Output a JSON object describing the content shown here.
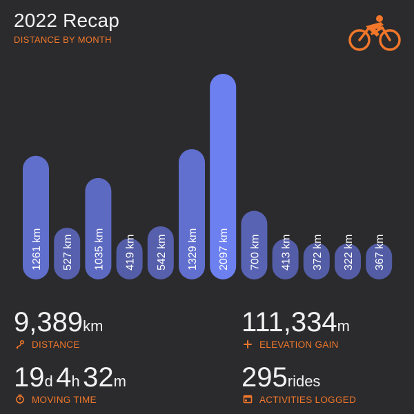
{
  "header": {
    "title": "2022 Recap",
    "subtitle": "DISTANCE BY MONTH"
  },
  "logo": {
    "icon": "cyclist-icon",
    "color": "#f2772a"
  },
  "chart_data": {
    "type": "bar",
    "orientation": "vertical",
    "unit": "km",
    "categories": [
      "",
      "",
      "",
      "",
      "",
      "",
      "",
      "",
      "",
      "",
      "",
      ""
    ],
    "values": [
      1261,
      527,
      1035,
      419,
      542,
      1329,
      2097,
      700,
      413,
      372,
      322,
      367
    ],
    "labels": [
      "1261 km",
      "527 km",
      "1035 km",
      "419 km",
      "542 km",
      "1329 km",
      "2097 km",
      "700 km",
      "413 km",
      "372 km",
      "322 km",
      "367 km"
    ],
    "grid": false,
    "legend": "none",
    "colors": {
      "low": "#4e5596",
      "high": "#6c80f0"
    }
  },
  "stats": {
    "distance": {
      "value": "9,389",
      "unit": "km",
      "label": "DISTANCE",
      "icon": "route-pin-icon"
    },
    "elevation": {
      "value": "111,334",
      "unit": "m",
      "label": "ELEVATION GAIN",
      "icon": "plus-icon"
    },
    "moving_time": {
      "days": "19",
      "days_unit": "d",
      "hours": "4",
      "hours_unit": "h",
      "minutes": "32",
      "minutes_unit": "m",
      "label": "MOVING TIME",
      "icon": "stopwatch-icon"
    },
    "activities": {
      "value": "295",
      "unit": "rides",
      "label": "ACTIVITIES LOGGED",
      "icon": "calendar-icon"
    }
  },
  "colors": {
    "background": "#2b2b2d",
    "accent": "#f2772a",
    "text": "#f2f2f2"
  }
}
